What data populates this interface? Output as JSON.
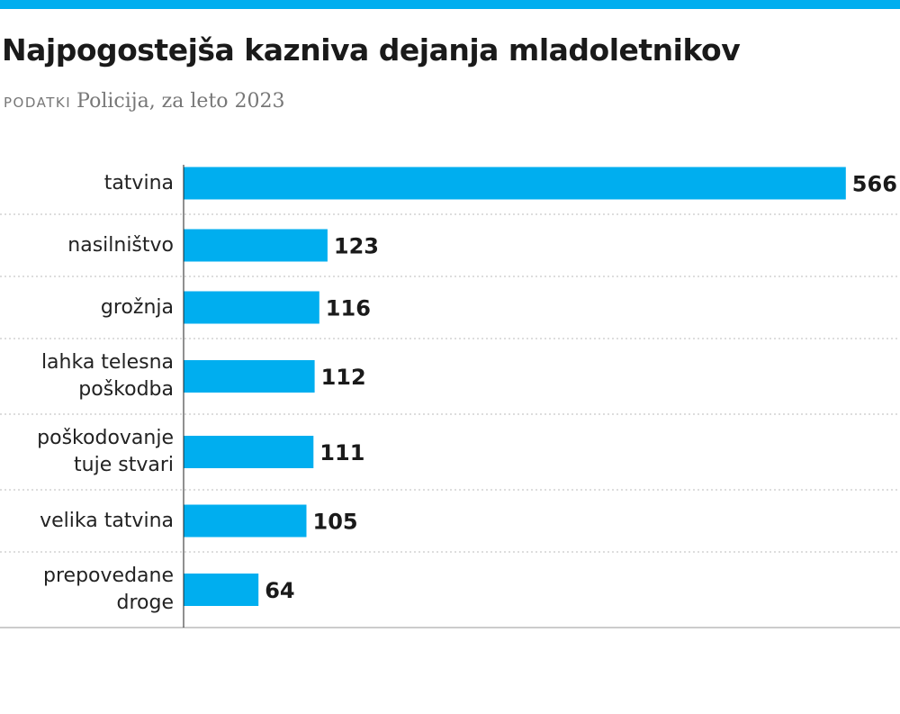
{
  "chart_data": {
    "type": "bar",
    "orientation": "horizontal",
    "title": "Najpogostejša kazniva dejanja mladoletnikov",
    "source_label": "PODATKI",
    "source": "Policija, za leto 2023",
    "categories": [
      "tatvina",
      "nasilništvo",
      "grožnja",
      "lahka telesna\npoškodba",
      "poškodovanje\ntuje stvari",
      "velika tatvina",
      "prepovedane\ndroge"
    ],
    "values": [
      566,
      123,
      116,
      112,
      111,
      105,
      64
    ],
    "color": "#00aeef"
  }
}
